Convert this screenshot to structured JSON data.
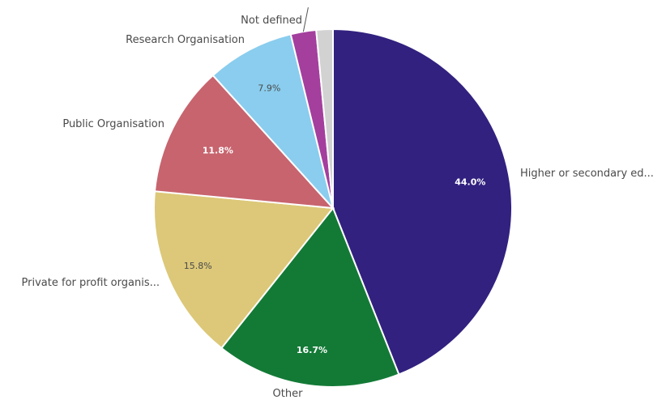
{
  "chart_data": {
    "type": "pie",
    "slices": [
      {
        "label": "Higher or secondary ed...",
        "value": 44.0,
        "value_label": "44.0%",
        "color": "#32217f",
        "text_tone": "dark"
      },
      {
        "label": "Other",
        "value": 16.7,
        "value_label": "16.7%",
        "color": "#137a36",
        "text_tone": "dark"
      },
      {
        "label": "Private for profit organis...",
        "value": 15.8,
        "value_label": "15.8%",
        "color": "#dcc878",
        "text_tone": "light"
      },
      {
        "label": "Public Organisation",
        "value": 11.8,
        "value_label": "11.8%",
        "color": "#c7646e",
        "text_tone": "dark"
      },
      {
        "label": "Research Organisation",
        "value": 7.9,
        "value_label": "7.9%",
        "color": "#8acdee",
        "text_tone": "light"
      },
      {
        "label": "",
        "value": 2.3,
        "value_label": "",
        "color": "#a43f9e",
        "text_tone": "dark"
      },
      {
        "label": "Not defined",
        "value": 1.5,
        "value_label": "",
        "color": "#d2d2d2",
        "text_tone": "light"
      }
    ],
    "start_angle_deg": 0,
    "direction": "clockwise"
  }
}
